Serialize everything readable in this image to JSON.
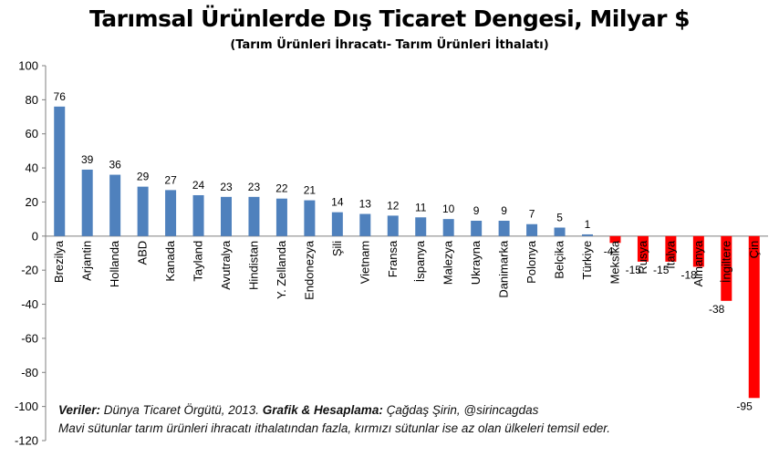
{
  "chart_data": {
    "type": "bar",
    "title": "Tarımsal Ürünlerde Dış Ticaret  Dengesi, Milyar $",
    "subtitle": "(Tarım Ürünleri İhracatı- Tarım Ürünleri İthalatı)",
    "categories": [
      "Brezilya",
      "Arjantin",
      "Hollanda",
      "ABD",
      "Kanada",
      "Tayland",
      "Avutralya",
      "Hindistan",
      "Y. Zellanda",
      "Endonezya",
      "Şili",
      "Vietnam",
      "Fransa",
      "İspanya",
      "Malezya",
      "Ukrayna",
      "Danimarka",
      "Polonya",
      "Belçika",
      "Türkiye",
      "Meksika",
      "Rusya",
      "İtalya",
      "Almanya",
      "İngiltere",
      "Çin"
    ],
    "values": [
      76,
      39,
      36,
      29,
      27,
      24,
      23,
      23,
      22,
      21,
      14,
      13,
      12,
      11,
      10,
      9,
      9,
      7,
      5,
      1,
      -4,
      -15,
      -15,
      -18,
      -38,
      -95
    ],
    "value_labels": [
      "76",
      "39",
      "36",
      "29",
      "27",
      "24",
      "23",
      "23",
      "22",
      "21",
      "14",
      "13",
      "12",
      "11",
      "10",
      "9",
      "9",
      "7",
      "5",
      "1",
      "-4",
      "-15",
      "-15",
      "-18",
      "-38",
      "-95"
    ],
    "yticks": [
      "100",
      "80",
      "60",
      "40",
      "20",
      "0",
      "-20",
      "-40",
      "-60",
      "-80",
      "-100",
      "-120"
    ],
    "ylim": [
      -120,
      100
    ],
    "grid": false,
    "colors": {
      "positive": "#4F81BD",
      "negative": "#FF0000"
    }
  },
  "notes": {
    "line1_source_label": "Veriler:",
    "line1_source": " Dünya Ticaret Örgütü, 2013. ",
    "line1_graph_label": "Grafik & Hesaplama:",
    "line1_author": " Çağdaş Şirin, @sirincagdas",
    "line2": "Mavi sütunlar tarım ürünleri ihracatı ithalatından fazla, kırmızı sütunlar ise az olan ülkeleri temsil eder."
  }
}
